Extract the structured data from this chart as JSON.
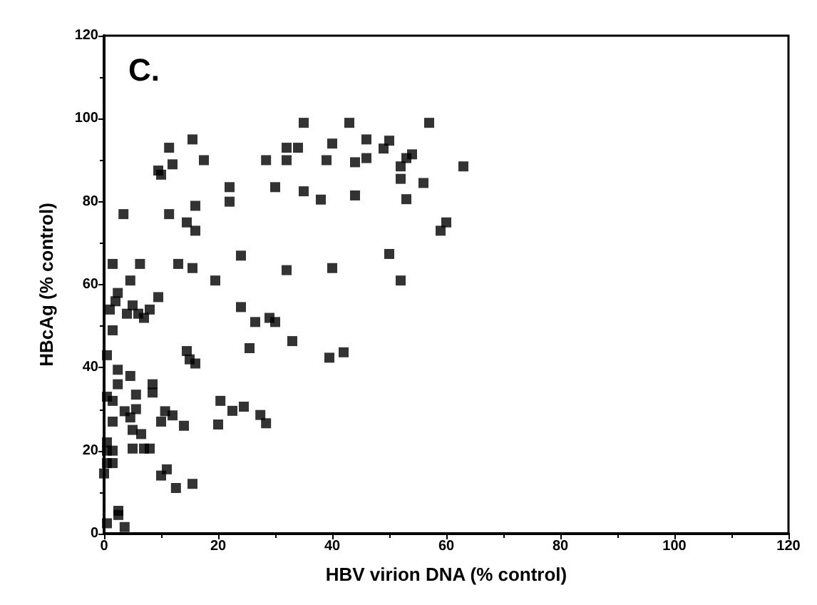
{
  "chart_data": {
    "type": "scatter",
    "xlabel": "HBV virion DNA (% control)",
    "ylabel": "HBcAg (% control)",
    "annotations": [
      "C."
    ],
    "color": "#000000",
    "marker": "square",
    "grid": false,
    "x": [
      35,
      43,
      57,
      46,
      50,
      49,
      46,
      54,
      53,
      52,
      63,
      52,
      56,
      53,
      60,
      59,
      50,
      52,
      32,
      34,
      40,
      28.4,
      32,
      39,
      44,
      22,
      22,
      30,
      35,
      38,
      44,
      24,
      19.5,
      32,
      40,
      24,
      26.5,
      29,
      30,
      25.5,
      33,
      39.5,
      42,
      20.4,
      22.5,
      24.5,
      27.4,
      28.4,
      20,
      11.4,
      15.5,
      12,
      9.5,
      10,
      17.5,
      3.4,
      11.4,
      16,
      14.5,
      16,
      1.5,
      6.3,
      13,
      15.5,
      4.6,
      2.4,
      9.5,
      8,
      6,
      5,
      7,
      1,
      2,
      4,
      1.5,
      0.5,
      14.5,
      15,
      16,
      2.4,
      4.6,
      2.4,
      8.5,
      8.5,
      0.5,
      1.5,
      5.6,
      5.6,
      3.6,
      10.7,
      12,
      14,
      10,
      1.5,
      4.6,
      5,
      6.5,
      0.5,
      0.5,
      5,
      7,
      8,
      1.5,
      0.5,
      1.5,
      0,
      11,
      10,
      12.6,
      15.5,
      2.5,
      2.5,
      0.5,
      3.6
    ],
    "values": [
      99,
      99,
      99,
      95,
      94.7,
      92.8,
      90.5,
      91.4,
      90.5,
      88.5,
      88.5,
      85.5,
      84.5,
      80.6,
      75,
      73,
      67.4,
      61,
      93,
      93,
      94,
      90,
      90,
      90,
      89.5,
      83.5,
      80,
      83.5,
      82.5,
      80.5,
      81.5,
      67,
      61,
      63.5,
      64,
      54.6,
      51,
      52,
      51,
      44.7,
      46.4,
      42.4,
      43.7,
      32,
      29.6,
      30.6,
      28.6,
      26.6,
      26.3,
      93,
      95,
      89,
      87.5,
      86.5,
      90,
      77,
      77,
      79,
      75,
      73,
      65,
      65,
      65,
      64,
      61,
      58,
      57,
      54,
      53,
      55,
      52,
      54,
      56,
      53,
      49,
      43,
      44,
      42,
      41,
      39.5,
      38,
      36,
      36,
      34,
      33,
      32,
      33.5,
      30,
      29.5,
      29.5,
      28.5,
      26,
      27,
      27,
      28,
      25,
      24,
      22,
      20,
      20.5,
      20.5,
      20.5,
      20,
      17,
      17,
      14.5,
      15.5,
      14,
      11,
      12,
      5.5,
      4.5,
      2.5,
      1.6
    ],
    "xlim": [
      0,
      120
    ],
    "xticks": [
      0,
      20,
      40,
      60,
      80,
      100,
      120
    ],
    "ylim": [
      0,
      120
    ],
    "yticks": [
      0,
      20,
      40,
      60,
      80,
      100,
      120
    ]
  }
}
